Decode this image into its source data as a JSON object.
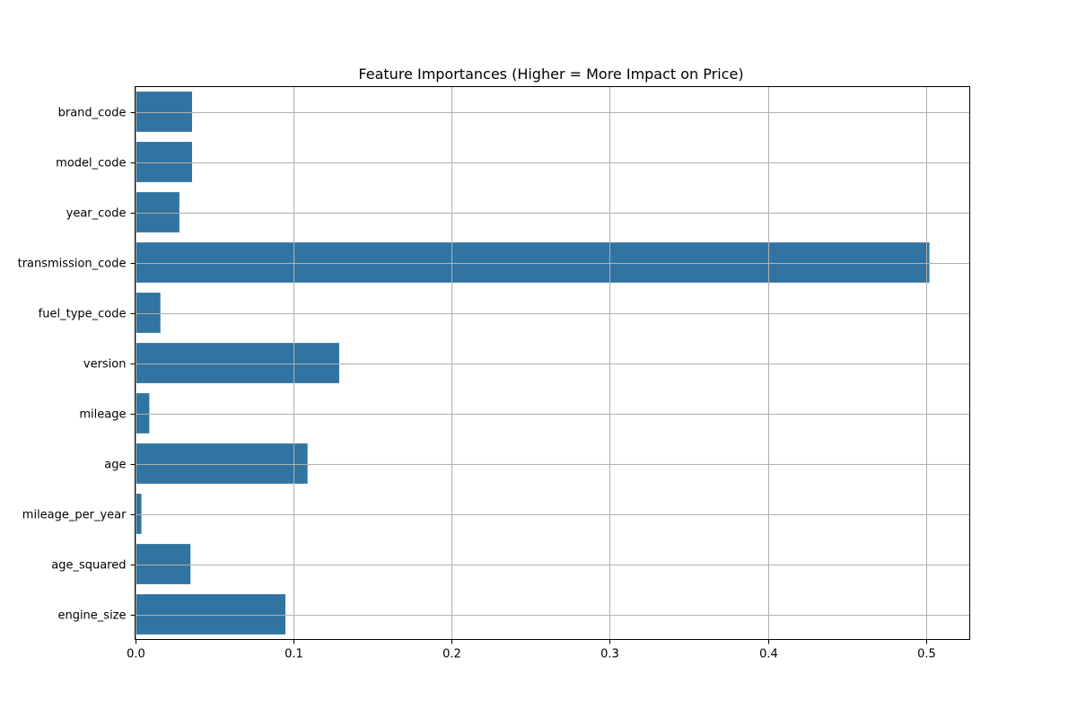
{
  "chart_data": {
    "type": "bar",
    "orientation": "horizontal",
    "title": "Feature Importances (Higher = More Impact on Price)",
    "xlabel": "",
    "ylabel": "",
    "categories": [
      "brand_code",
      "model_code",
      "year_code",
      "transmission_code",
      "fuel_type_code",
      "version",
      "mileage",
      "age",
      "mileage_per_year",
      "age_squared",
      "engine_size"
    ],
    "values": [
      0.036,
      0.036,
      0.028,
      0.502,
      0.016,
      0.129,
      0.009,
      0.109,
      0.004,
      0.035,
      0.095
    ],
    "xlim": [
      0,
      0.5275
    ],
    "xticks": [
      0.0,
      0.1,
      0.2,
      0.3,
      0.4,
      0.5
    ],
    "xtick_labels": [
      "0.0",
      "0.1",
      "0.2",
      "0.3",
      "0.4",
      "0.5"
    ],
    "grid": true,
    "bar_color": "#3274a1",
    "grid_color": "#b0b0b0"
  }
}
